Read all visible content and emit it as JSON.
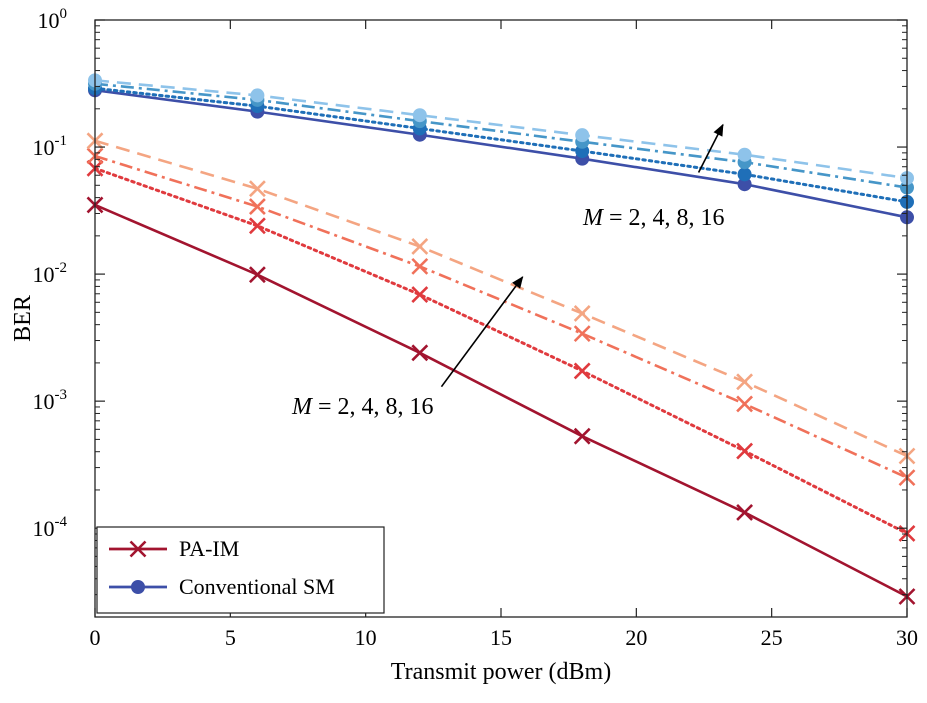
{
  "chart_data": {
    "type": "line",
    "title": "",
    "xlabel": "Transmit power (dBm)",
    "ylabel": "BER",
    "xlim": [
      0,
      30
    ],
    "ylim": [
      2e-05,
      1
    ],
    "yscale": "log",
    "grid": false,
    "x_ticks": [
      "0",
      "5",
      "10",
      "15",
      "20",
      "25",
      "30"
    ],
    "y_ticks": [
      {
        "base": "10",
        "exp": "0"
      },
      {
        "base": "10",
        "exp": "-1"
      },
      {
        "base": "10",
        "exp": "-2"
      },
      {
        "base": "10",
        "exp": "-3"
      },
      {
        "base": "10",
        "exp": "-4"
      }
    ],
    "legend": {
      "placement": "bottom-left",
      "entries": [
        {
          "label": "PA-IM",
          "color": "#A2142F",
          "marker": "x"
        },
        {
          "label": "Conventional SM",
          "color": "#3D4FA8",
          "marker": "o"
        }
      ]
    },
    "annotations": [
      {
        "prefix": "M",
        "text": " = 2,  4,  8,  16",
        "applies_to": "Conventional SM",
        "arrow_from": [
          22.3,
          0.063
        ],
        "arrow_to": [
          23.2,
          0.15
        ]
      },
      {
        "prefix": "M",
        "text": " = 2,  4,  8,  16",
        "applies_to": "PA-IM",
        "arrow_from": [
          12.8,
          0.0013
        ],
        "arrow_to": [
          15.8,
          0.0095
        ]
      }
    ],
    "x": [
      0,
      6,
      12,
      18,
      24,
      30
    ],
    "series": [
      {
        "group": "PA-IM",
        "M": 2,
        "style": "solid",
        "color": "#A2142F",
        "marker": "x",
        "values": [
          0.035,
          0.0099,
          0.0024,
          0.00053,
          0.000133,
          2.9e-05
        ]
      },
      {
        "group": "PA-IM",
        "M": 4,
        "style": "dotted",
        "color": "#E03A3E",
        "marker": "x",
        "values": [
          0.068,
          0.024,
          0.0069,
          0.00173,
          0.000405,
          9.1e-05
        ]
      },
      {
        "group": "PA-IM",
        "M": 8,
        "style": "dashdot",
        "color": "#F0715A",
        "marker": "x",
        "values": [
          0.085,
          0.034,
          0.0115,
          0.0034,
          0.00095,
          0.00025
        ]
      },
      {
        "group": "PA-IM",
        "M": 16,
        "style": "dashed",
        "color": "#F4A582",
        "marker": "x",
        "values": [
          0.112,
          0.047,
          0.0165,
          0.0049,
          0.00142,
          0.00037
        ]
      },
      {
        "group": "Conventional SM",
        "M": 2,
        "style": "solid",
        "color": "#3D4FA8",
        "marker": "o",
        "values": [
          0.28,
          0.19,
          0.125,
          0.081,
          0.051,
          0.028
        ]
      },
      {
        "group": "Conventional SM",
        "M": 4,
        "style": "dotted",
        "color": "#1F6FB8",
        "marker": "o",
        "values": [
          0.29,
          0.21,
          0.14,
          0.093,
          0.061,
          0.037
        ]
      },
      {
        "group": "Conventional SM",
        "M": 8,
        "style": "dashdot",
        "color": "#4696C8",
        "marker": "o",
        "values": [
          0.315,
          0.235,
          0.16,
          0.11,
          0.076,
          0.048
        ]
      },
      {
        "group": "Conventional SM",
        "M": 16,
        "style": "dashed",
        "color": "#8EC3EA",
        "marker": "o",
        "values": [
          0.335,
          0.255,
          0.178,
          0.124,
          0.087,
          0.057
        ]
      }
    ]
  }
}
